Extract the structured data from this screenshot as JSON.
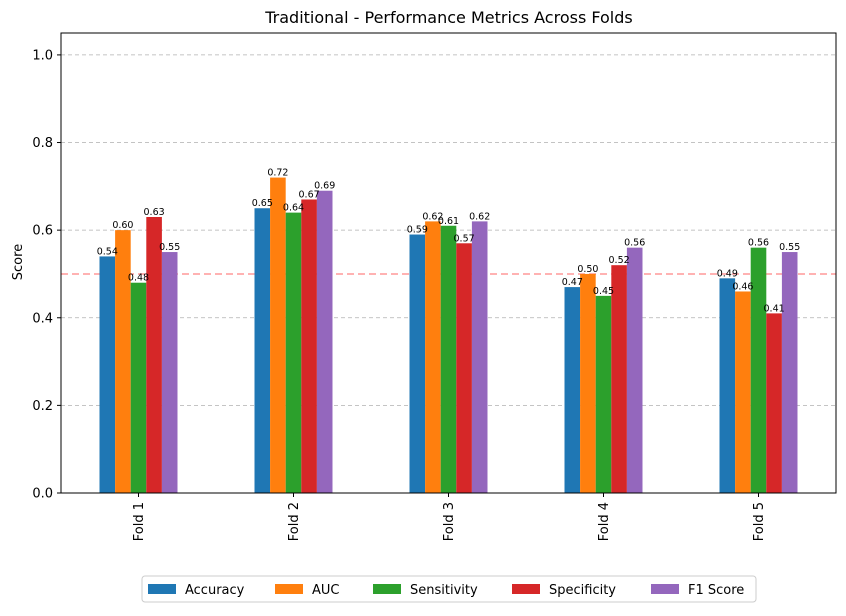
{
  "chart_data": {
    "type": "bar",
    "title": "Traditional - Performance Metrics Across Folds",
    "xlabel": "",
    "ylabel": "Score",
    "ylim": [
      0,
      1.05
    ],
    "yticks": [
      "0.0",
      "0.2",
      "0.4",
      "0.6",
      "0.8",
      "1.0"
    ],
    "categories": [
      "Fold 1",
      "Fold 2",
      "Fold 3",
      "Fold 4",
      "Fold 5"
    ],
    "series": [
      {
        "name": "Accuracy",
        "color": "#1f77b4",
        "values": [
          0.54,
          0.65,
          0.59,
          0.47,
          0.49
        ]
      },
      {
        "name": "AUC",
        "color": "#ff7f0e",
        "values": [
          0.6,
          0.72,
          0.62,
          0.5,
          0.46
        ]
      },
      {
        "name": "Sensitivity",
        "color": "#2ca02c",
        "values": [
          0.48,
          0.64,
          0.61,
          0.45,
          0.56
        ]
      },
      {
        "name": "Specificity",
        "color": "#d62728",
        "values": [
          0.63,
          0.67,
          0.57,
          0.52,
          0.41
        ]
      },
      {
        "name": "F1 Score",
        "color": "#9467bd",
        "values": [
          0.55,
          0.69,
          0.62,
          0.56,
          0.55
        ]
      }
    ],
    "reference_line": {
      "value": 0.5,
      "color": "#ff9999",
      "style": "dashed"
    },
    "grid": "y-dashed",
    "legend_placement": "bottom-center"
  }
}
